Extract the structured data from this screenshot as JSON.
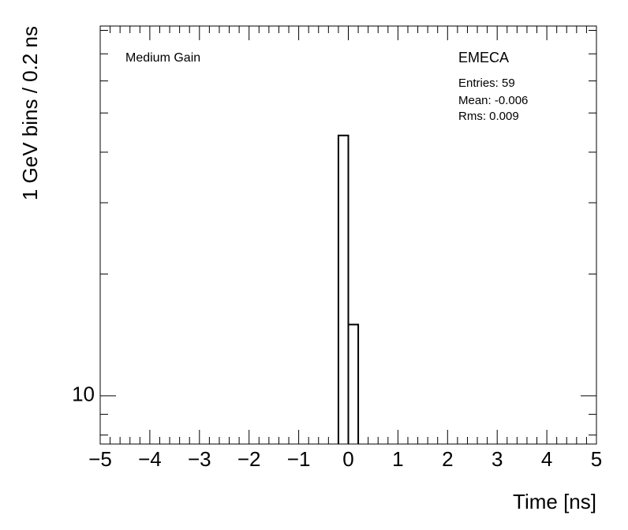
{
  "chart_data": {
    "type": "histogram",
    "xlabel": "Time [ns]",
    "ylabel": "1 GeV bins / 0.2 ns",
    "annotations": [
      "Medium Gain",
      "EMECA",
      "Entries: 59",
      "Mean: -0.006",
      "Rms: 0.009"
    ],
    "bins": [
      -0.2,
      0,
      0.2
    ],
    "values": [
      44,
      15
    ],
    "color": "#000000",
    "xlim": [
      -5,
      5
    ],
    "xticks": [
      {
        "value": -5,
        "label": "−5"
      },
      {
        "value": -4,
        "label": "−4"
      },
      {
        "value": -3,
        "label": "−3"
      },
      {
        "value": -2,
        "label": "−2"
      },
      {
        "value": -1,
        "label": "−1"
      },
      0,
      1,
      2,
      3,
      4,
      5
    ],
    "xminor_ticks": [
      -4.8,
      -4.6,
      -4.4,
      -4.2,
      -3.8,
      -3.6,
      -3.4,
      -3.2,
      -2.8,
      -2.6,
      -2.4,
      -2.2,
      -1.8,
      -1.6,
      -1.4,
      -1.2,
      -0.8,
      -0.6,
      -0.4,
      -0.2,
      0.2,
      0.4,
      0.6,
      0.8,
      1.2,
      1.4,
      1.6,
      1.8,
      2.2,
      2.4,
      2.6,
      2.8,
      3.2,
      3.4,
      3.6,
      3.8,
      4.2,
      4.4,
      4.6,
      4.8
    ],
    "ylim": [
      7.6,
      82
    ],
    "yscale": "log",
    "yticks": [
      10
    ],
    "yminor_ticks": [
      8,
      9,
      20,
      30,
      40,
      50,
      60,
      70,
      80
    ]
  }
}
